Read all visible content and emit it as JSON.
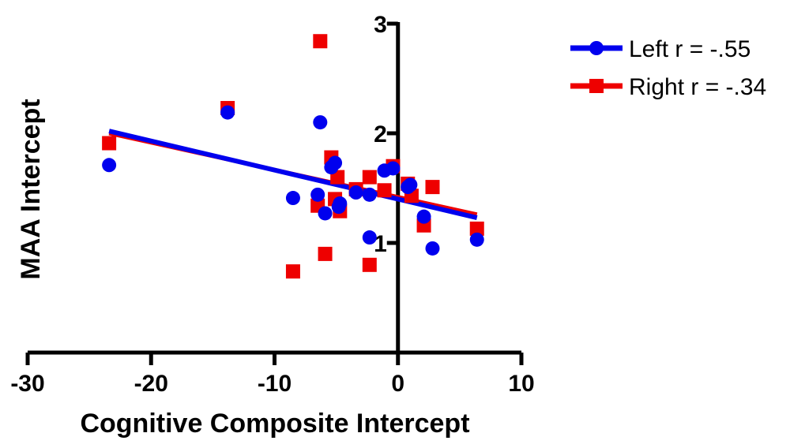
{
  "chart_data": {
    "type": "scatter",
    "title": "",
    "xlabel": "Cognitive Composite Intercept",
    "ylabel": "MAA Intercept",
    "xlim": [
      -30,
      10
    ],
    "ylim": [
      0,
      3
    ],
    "xticks": [
      "-30",
      "-20",
      "-10",
      "0",
      "10"
    ],
    "yticks": [
      "1",
      "2",
      "3"
    ],
    "grid": false,
    "legend_position": "top-right",
    "series": [
      {
        "name": "Left r = -.55",
        "color": "#0000ee",
        "marker": "circle",
        "points": [
          [
            -23.4,
            1.71
          ],
          [
            -13.8,
            2.19
          ],
          [
            -6.3,
            2.1
          ],
          [
            -8.5,
            1.41
          ],
          [
            -6.5,
            1.44
          ],
          [
            -5.9,
            1.27
          ],
          [
            -5.4,
            1.69
          ],
          [
            -5.1,
            1.73
          ],
          [
            -4.7,
            1.36
          ],
          [
            -4.8,
            1.33
          ],
          [
            -3.4,
            1.46
          ],
          [
            -2.3,
            1.44
          ],
          [
            -2.3,
            1.05
          ],
          [
            -1.1,
            1.66
          ],
          [
            -0.4,
            1.68
          ],
          [
            0.8,
            1.51
          ],
          [
            1.0,
            1.53
          ],
          [
            2.1,
            1.24
          ],
          [
            2.8,
            0.95
          ],
          [
            6.4,
            1.03
          ]
        ],
        "fit": [
          [
            -23.4,
            2.02
          ],
          [
            6.4,
            1.23
          ]
        ]
      },
      {
        "name": "Right r = -.34",
        "color": "#ee0000",
        "marker": "square",
        "points": [
          [
            -23.4,
            1.91
          ],
          [
            -13.8,
            2.23
          ],
          [
            -6.3,
            2.84
          ],
          [
            -8.5,
            0.74
          ],
          [
            -6.5,
            1.34
          ],
          [
            -5.9,
            0.9
          ],
          [
            -5.4,
            1.78
          ],
          [
            -4.9,
            1.6
          ],
          [
            -5.1,
            1.4
          ],
          [
            -4.7,
            1.29
          ],
          [
            -3.4,
            1.49
          ],
          [
            -2.3,
            1.6
          ],
          [
            -2.3,
            0.8
          ],
          [
            -1.1,
            1.48
          ],
          [
            -0.4,
            1.7
          ],
          [
            0.8,
            1.54
          ],
          [
            1.1,
            1.43
          ],
          [
            2.1,
            1.16
          ],
          [
            2.8,
            1.51
          ],
          [
            6.4,
            1.13
          ]
        ],
        "fit": [
          [
            -23.4,
            2.0
          ],
          [
            6.4,
            1.26
          ]
        ]
      }
    ]
  }
}
